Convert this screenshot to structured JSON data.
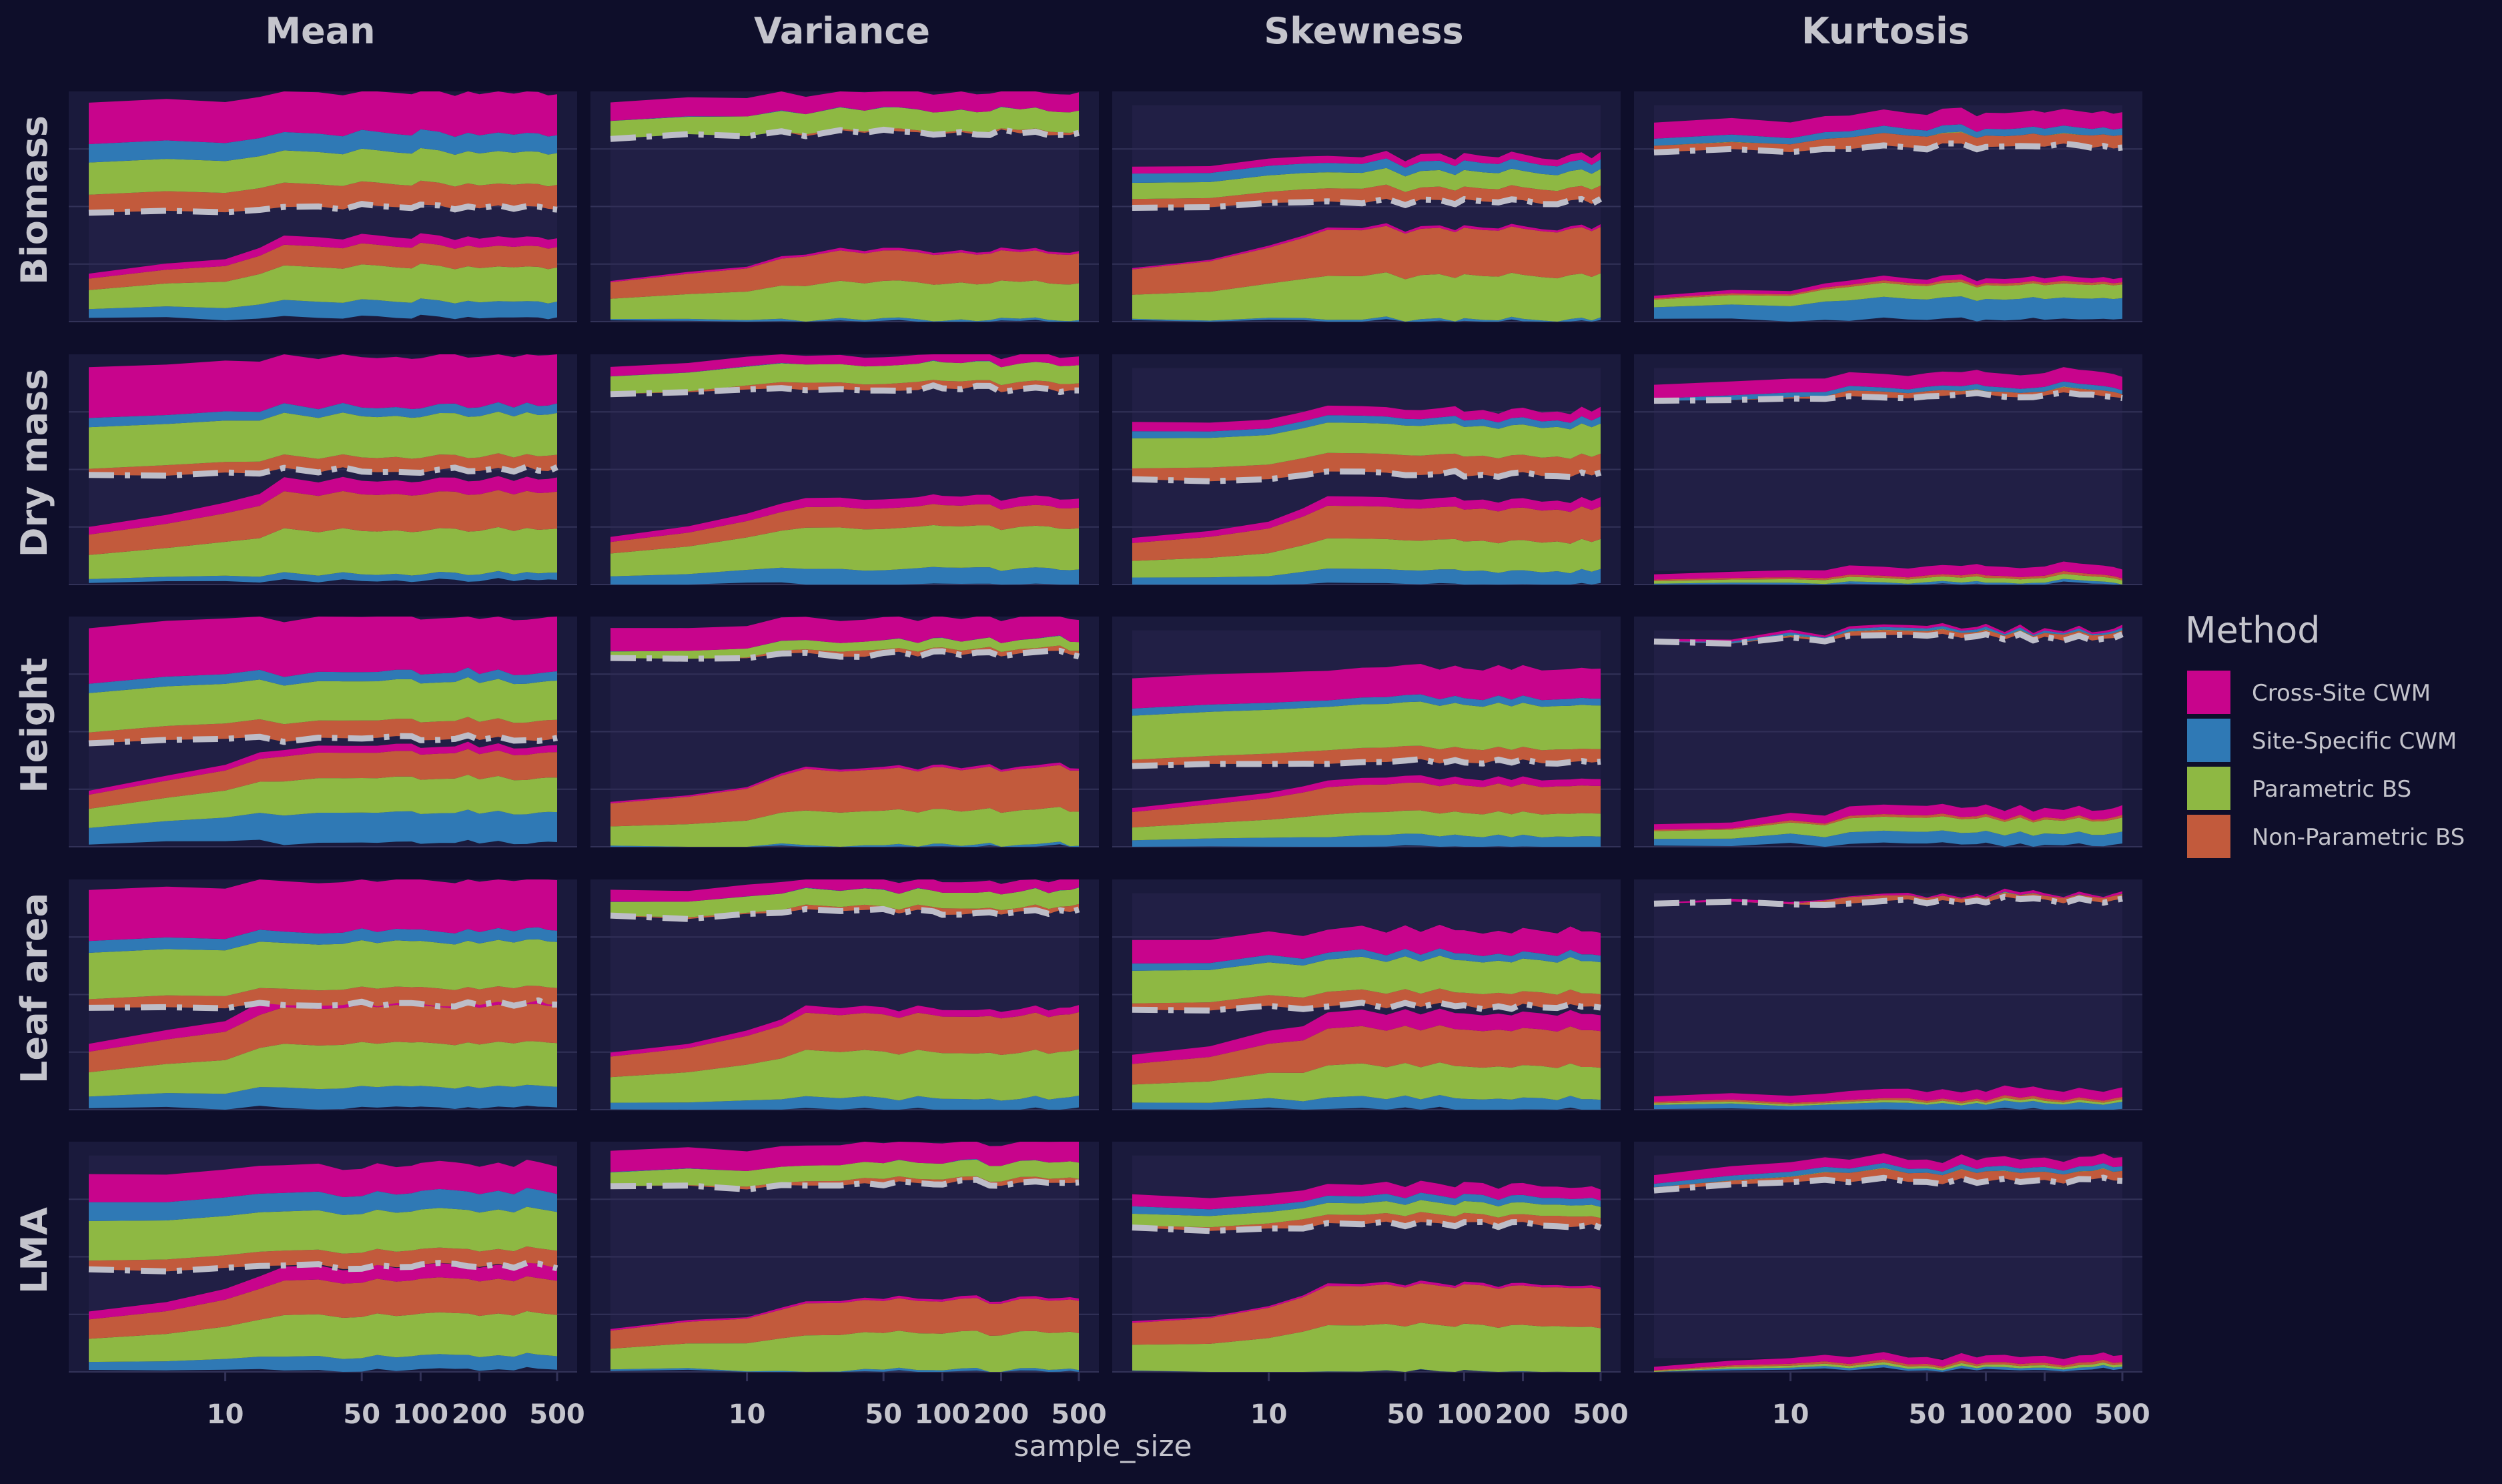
{
  "chart_data": {
    "type": "area",
    "facet_columns": [
      "Mean",
      "Variance",
      "Skewness",
      "Kurtosis"
    ],
    "facet_rows": [
      "Biomass",
      "Dry mass",
      "Height",
      "Leaf area",
      "LMA"
    ],
    "xlabel": "sample_size",
    "x_ticks": [
      "10",
      "50",
      "100",
      "200",
      "500"
    ],
    "x_tick_values": [
      10,
      50,
      100,
      200,
      500
    ],
    "xlim": [
      2,
      500
    ],
    "ylim": [
      0,
      100
    ],
    "grid": true,
    "legend": {
      "title": "Method",
      "position": "right",
      "items": [
        {
          "label": "Cross-Site CWM",
          "color": "#c8048c"
        },
        {
          "label": "Site-Specific CWM",
          "color": "#2f79b5"
        },
        {
          "label": "Parametric BS",
          "color": "#8eb843"
        },
        {
          "label": "Non-Parametric BS",
          "color": "#c25a3c"
        }
      ]
    },
    "colors": {
      "background": "#0e0e2a",
      "panel": "#1a1a3c",
      "grid": "#323258",
      "median_line": "#bdbdc8",
      "text": "#c4c4cc"
    },
    "x": [
      2,
      5,
      10,
      15,
      20,
      30,
      40,
      50,
      60,
      75,
      90,
      100,
      125,
      150,
      175,
      200,
      250,
      300,
      350,
      400,
      450,
      500
    ],
    "panels": [
      {
        "row": "Biomass",
        "col": "Mean",
        "lower": {
          "base": 2,
          "site": 9,
          "param": 24,
          "nonpar": 33,
          "cross": 37
        },
        "median": 50,
        "upper": {
          "nonpar": 60,
          "param": 74,
          "site": 82,
          "cross": 100
        }
      },
      {
        "row": "Biomass",
        "col": "Variance",
        "lower": {
          "base": 0,
          "site": 1,
          "param": 17,
          "nonpar": 30,
          "cross": 31
        },
        "median": 82,
        "upper": {
          "nonpar": 83,
          "param": 92,
          "site": 92,
          "cross": 100
        }
      },
      {
        "row": "Biomass",
        "col": "Skewness",
        "lower": {
          "base": 0,
          "site": 1,
          "param": 20,
          "nonpar": 40,
          "cross": 41
        },
        "median": 52,
        "upper": {
          "nonpar": 58,
          "param": 65,
          "site": 69,
          "cross": 72
        }
      },
      {
        "row": "Biomass",
        "col": "Kurtosis",
        "lower": {
          "base": 1,
          "site": 10,
          "param": 16,
          "nonpar": 17,
          "cross": 19
        },
        "median": 76,
        "upper": {
          "nonpar": 81,
          "param": 81,
          "site": 84,
          "cross": 91
        }
      },
      {
        "row": "Dry mass",
        "col": "Mean",
        "lower": {
          "base": 2,
          "site": 5,
          "param": 24,
          "nonpar": 40,
          "cross": 46
        },
        "median": 50,
        "upper": {
          "nonpar": 56,
          "param": 74,
          "site": 78,
          "cross": 100
        }
      },
      {
        "row": "Dry mass",
        "col": "Variance",
        "lower": {
          "base": 0,
          "site": 7,
          "param": 25,
          "nonpar": 34,
          "cross": 38
        },
        "median": 85,
        "upper": {
          "nonpar": 88,
          "param": 96,
          "site": 96,
          "cross": 100
        }
      },
      {
        "row": "Dry mass",
        "col": "Skewness",
        "lower": {
          "base": 0,
          "site": 6,
          "param": 19,
          "nonpar": 33,
          "cross": 37
        },
        "median": 48,
        "upper": {
          "nonpar": 56,
          "param": 69,
          "site": 72,
          "cross": 76
        }
      },
      {
        "row": "Dry mass",
        "col": "Kurtosis",
        "lower": {
          "base": 0,
          "site": 1,
          "param": 3,
          "nonpar": 4,
          "cross": 8
        },
        "median": 82,
        "upper": {
          "nonpar": 84,
          "param": 84,
          "site": 86,
          "cross": 92
        }
      },
      {
        "row": "Height",
        "col": "Mean",
        "lower": {
          "base": 2,
          "site": 15,
          "param": 30,
          "nonpar": 41,
          "cross": 44
        },
        "median": 47,
        "upper": {
          "nonpar": 55,
          "param": 72,
          "site": 76,
          "cross": 100
        }
      },
      {
        "row": "Height",
        "col": "Variance",
        "lower": {
          "base": 0,
          "site": 1,
          "param": 16,
          "nonpar": 34,
          "cross": 35
        },
        "median": 84,
        "upper": {
          "nonpar": 86,
          "param": 90,
          "site": 90,
          "cross": 100
        }
      },
      {
        "row": "Height",
        "col": "Skewness",
        "lower": {
          "base": 0,
          "site": 5,
          "param": 15,
          "nonpar": 27,
          "cross": 30
        },
        "median": 37,
        "upper": {
          "nonpar": 43,
          "param": 62,
          "site": 65,
          "cross": 78
        }
      },
      {
        "row": "Height",
        "col": "Kurtosis",
        "lower": {
          "base": 1,
          "site": 6,
          "param": 12,
          "nonpar": 13,
          "cross": 17
        },
        "median": 91,
        "upper": {
          "nonpar": 93,
          "param": 93,
          "site": 94,
          "cross": 95
        }
      },
      {
        "row": "Leaf area",
        "col": "Mean",
        "lower": {
          "base": 1,
          "site": 10,
          "param": 29,
          "nonpar": 45,
          "cross": 51
        },
        "median": 46,
        "upper": {
          "nonpar": 53,
          "param": 73,
          "site": 78,
          "cross": 100
        }
      },
      {
        "row": "Leaf area",
        "col": "Variance",
        "lower": {
          "base": 0,
          "site": 5,
          "param": 25,
          "nonpar": 41,
          "cross": 44
        },
        "median": 86,
        "upper": {
          "nonpar": 88,
          "param": 95,
          "site": 95,
          "cross": 100
        }
      },
      {
        "row": "Leaf area",
        "col": "Skewness",
        "lower": {
          "base": 0,
          "site": 5,
          "param": 19,
          "nonpar": 35,
          "cross": 42
        },
        "median": 45,
        "upper": {
          "nonpar": 51,
          "param": 65,
          "site": 68,
          "cross": 78
        }
      },
      {
        "row": "Leaf area",
        "col": "Kurtosis",
        "lower": {
          "base": 0,
          "site": 3,
          "param": 4,
          "nonpar": 5,
          "cross": 9
        },
        "median": 91,
        "upper": {
          "nonpar": 93,
          "param": 93,
          "site": 93,
          "cross": 94
        }
      },
      {
        "row": "LMA",
        "col": "Mean",
        "lower": {
          "base": 1,
          "site": 7,
          "param": 25,
          "nonpar": 40,
          "cross": 46
        },
        "median": 46,
        "upper": {
          "nonpar": 53,
          "param": 70,
          "site": 78,
          "cross": 90
        }
      },
      {
        "row": "LMA",
        "col": "Variance",
        "lower": {
          "base": 0,
          "site": 1,
          "param": 17,
          "nonpar": 31,
          "cross": 32
        },
        "median": 82,
        "upper": {
          "nonpar": 84,
          "param": 91,
          "site": 91,
          "cross": 100
        }
      },
      {
        "row": "LMA",
        "col": "Skewness",
        "lower": {
          "base": 0,
          "site": 0,
          "param": 20,
          "nonpar": 37,
          "cross": 38
        },
        "median": 64,
        "upper": {
          "nonpar": 68,
          "param": 73,
          "site": 76,
          "cross": 81
        }
      },
      {
        "row": "LMA",
        "col": "Kurtosis",
        "lower": {
          "base": 1,
          "site": 2,
          "param": 3,
          "nonpar": 4,
          "cross": 7
        },
        "median": 83,
        "upper": {
          "nonpar": 87,
          "param": 87,
          "site": 89,
          "cross": 93
        }
      }
    ]
  }
}
